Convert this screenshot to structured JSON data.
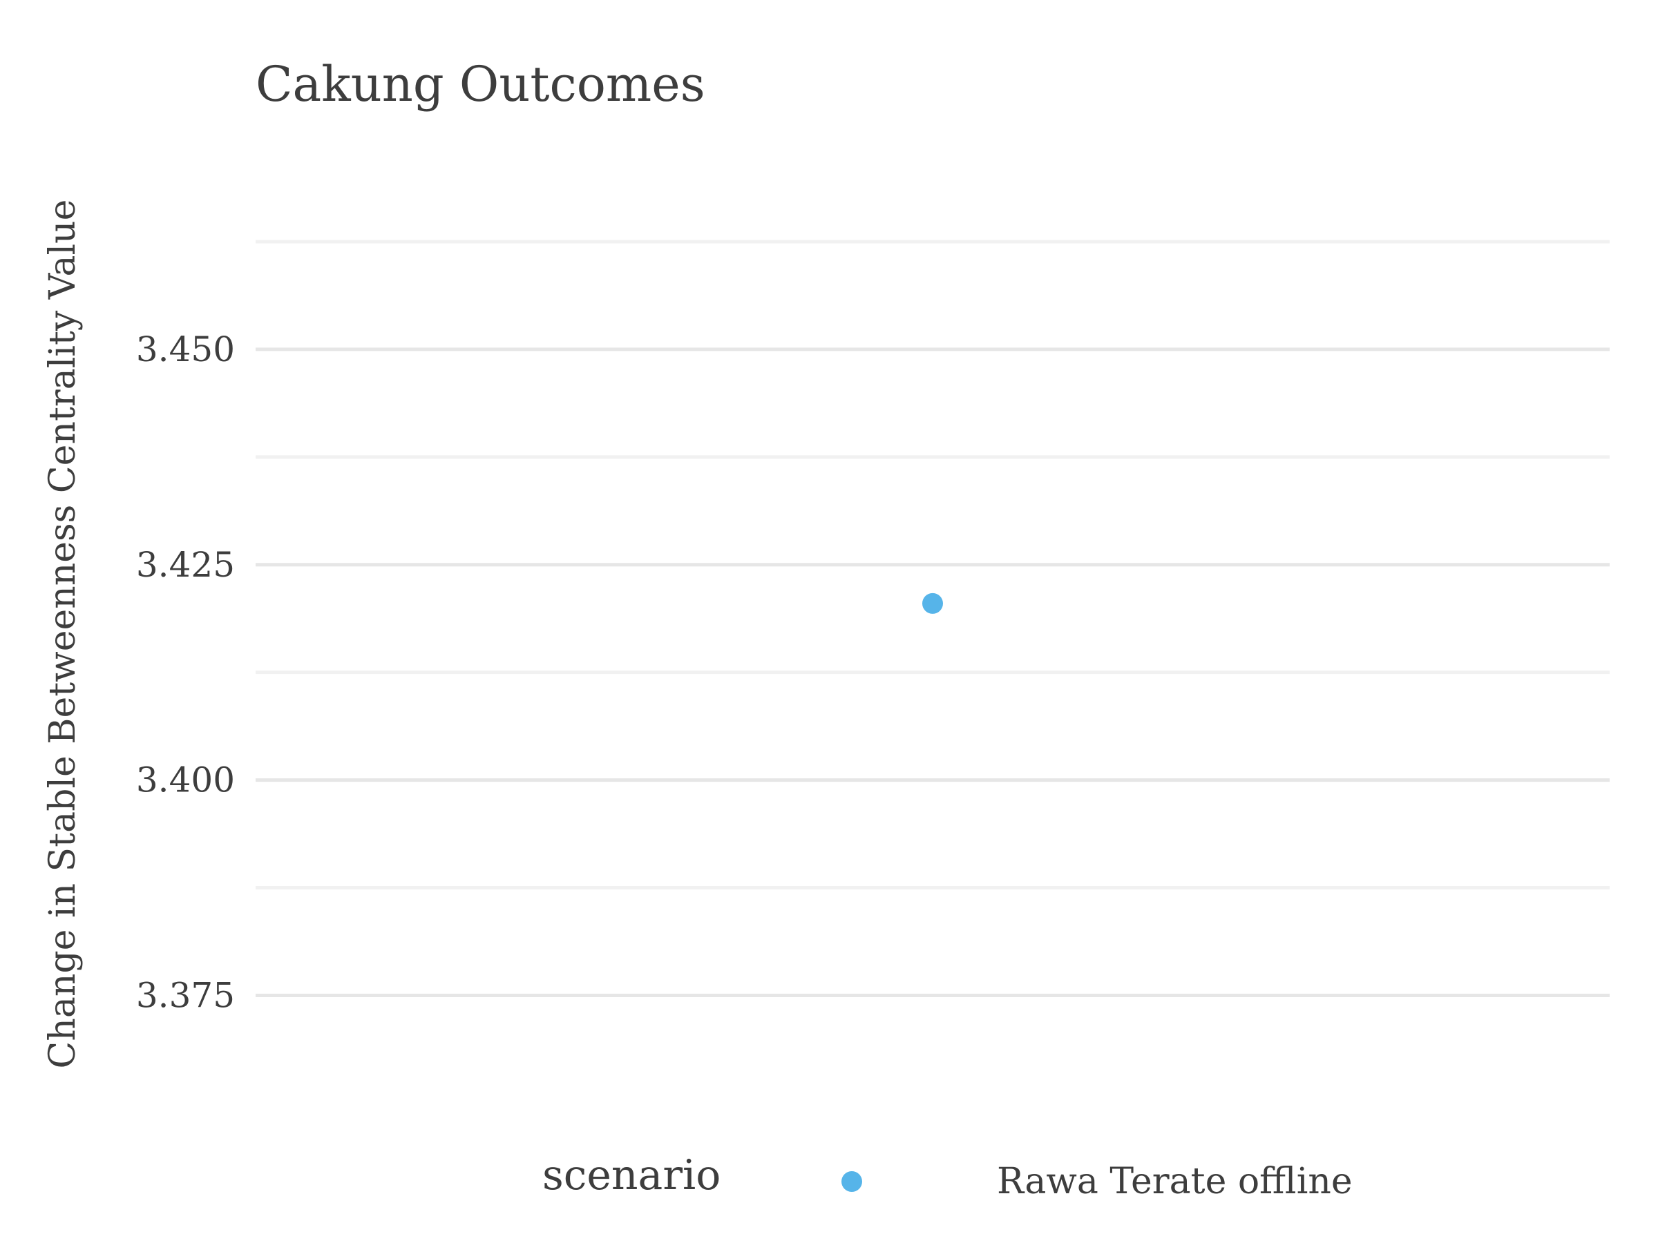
{
  "chart_data": {
    "type": "scatter",
    "title": "Cakung Outcomes",
    "xlabel": "",
    "ylabel": "Change in Stable Betweenness Centrality Value",
    "ylim": [
      3.3675,
      3.4625
    ],
    "y_ticks": [
      "3.375",
      "3.400",
      "3.425",
      "3.450"
    ],
    "y_tick_values": [
      3.375,
      3.4,
      3.425,
      3.45
    ],
    "y_minor_tick_values": [
      3.3875,
      3.4125,
      3.4375,
      3.4625
    ],
    "grid": true,
    "legend": {
      "title": "scenario",
      "position": "bottom"
    },
    "series": [
      {
        "name": "Rawa Terate offline",
        "color": "#56b4e9",
        "values": [
          3.4205
        ]
      }
    ]
  }
}
